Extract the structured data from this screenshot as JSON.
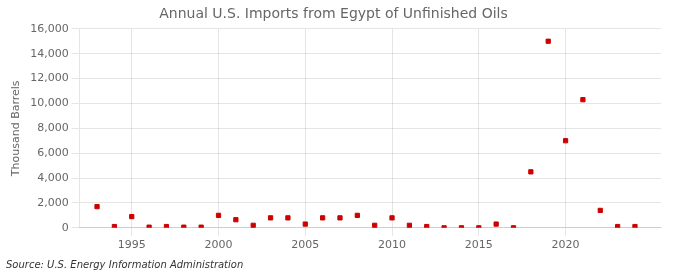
{
  "chart_data": {
    "type": "scatter",
    "title": "Annual U.S. Imports from Egypt of Unfinished Oils",
    "ylabel": "Thousand Barrels",
    "annotation": "Source: U.S. Energy Information Administration",
    "x": [
      1993,
      1994,
      1995,
      1996,
      1997,
      1998,
      1999,
      2000,
      2001,
      2002,
      2003,
      2004,
      2005,
      2006,
      2007,
      2008,
      2009,
      2010,
      2011,
      2012,
      2013,
      2014,
      2015,
      2016,
      2017,
      2018,
      2019,
      2020,
      2021,
      2022,
      2023,
      2024
    ],
    "values": [
      1700,
      100,
      900,
      50,
      100,
      50,
      50,
      1000,
      650,
      200,
      800,
      800,
      300,
      800,
      800,
      1000,
      200,
      800,
      200,
      100,
      0,
      0,
      0,
      300,
      0,
      4500,
      15000,
      7000,
      10300,
      1400,
      100,
      100
    ],
    "color": "#cc0000",
    "marker": "square",
    "xlim": [
      1992,
      2025.5
    ],
    "xticks": [
      1995,
      2000,
      2005,
      2010,
      2015,
      2020
    ],
    "ylim": [
      0,
      16000
    ],
    "yticks": [
      0,
      {
        "value": 2000,
        "label": "2,000"
      },
      {
        "value": 4000,
        "label": "4,000"
      },
      {
        "value": 6000,
        "label": "6,000"
      },
      {
        "value": 8000,
        "label": "8,000"
      },
      {
        "value": 10000,
        "label": "10,000"
      },
      {
        "value": 12000,
        "label": "12,000"
      },
      {
        "value": 14000,
        "label": "14,000"
      },
      {
        "value": 16000,
        "label": "16,000"
      }
    ],
    "grid": true
  }
}
